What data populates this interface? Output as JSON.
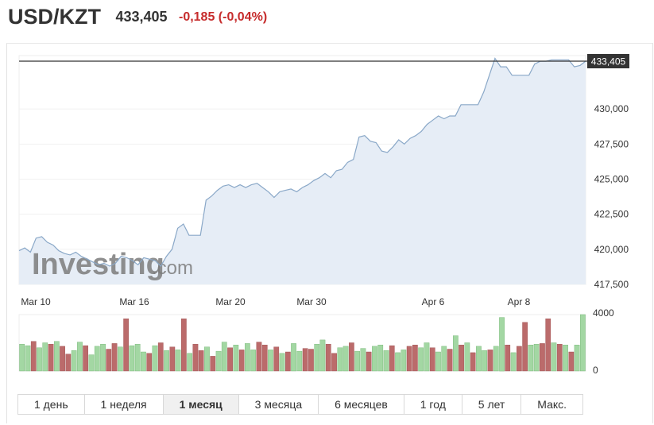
{
  "header": {
    "symbol": "USD/KZT",
    "last_price": "433,405",
    "change": "-0,185 (-0,04%)",
    "change_color": "#c62c2c"
  },
  "watermark": {
    "text": "Investing",
    "suffix": ".com"
  },
  "price_badge": "433,405",
  "tabs": [
    {
      "label": "1 день",
      "active": false
    },
    {
      "label": "1 неделя",
      "active": false
    },
    {
      "label": "1 месяц",
      "active": true
    },
    {
      "label": "3 месяца",
      "active": false
    },
    {
      "label": "6 месяцев",
      "active": false
    },
    {
      "label": "1 год",
      "active": false
    },
    {
      "label": "5 лет",
      "active": false
    },
    {
      "label": "Макс.",
      "active": false
    }
  ],
  "colors": {
    "line": "#8aa8c8",
    "area": "#e6edf6",
    "up_bar": "#a3d7a3",
    "down_bar": "#bb6b6b",
    "last_price_line": "#333333"
  },
  "chart_data": {
    "type": "area",
    "x_tick_labels": [
      "Mar 10",
      "Mar 16",
      "Mar 20",
      "Mar 30",
      "Apr 6",
      "Apr 8"
    ],
    "y_tick_labels": [
      "417,500",
      "420,000",
      "422,500",
      "425,000",
      "427,500",
      "430,000"
    ],
    "y_ticks": [
      417.5,
      420,
      422.5,
      425,
      427.5,
      430
    ],
    "ylim": [
      417.5,
      433.8
    ],
    "last_value": 433.405,
    "series": [
      {
        "type": "area",
        "values": [
          419.9,
          420.1,
          419.8,
          420.8,
          420.9,
          420.5,
          420.3,
          419.9,
          419.7,
          419.6,
          419.8,
          419.5,
          419.3,
          419.1,
          418.9,
          419.0,
          418.8,
          419.0,
          419.5,
          419.4,
          419.2,
          418.9,
          419.4,
          419.3,
          419.2,
          418.8,
          419.5,
          420.0,
          421.5,
          421.8,
          421.0,
          421.0,
          421.0,
          423.5,
          423.8,
          424.2,
          424.5,
          424.6,
          424.4,
          424.6,
          424.4,
          424.6,
          424.7,
          424.4,
          424.1,
          423.7,
          424.1,
          424.2,
          424.3,
          424.1,
          424.4,
          424.6,
          424.9,
          425.1,
          425.4,
          425.1,
          425.6,
          425.7,
          426.2,
          426.4,
          428.0,
          428.1,
          427.7,
          427.6,
          427.0,
          426.9,
          427.3,
          427.8,
          427.5,
          427.9,
          428.1,
          428.4,
          428.9,
          429.2,
          429.5,
          429.3,
          429.5,
          429.5,
          430.3,
          430.3,
          430.3,
          430.3,
          431.2,
          432.4,
          433.6,
          433.0,
          433.0,
          432.4,
          432.4,
          432.4,
          432.4,
          433.2,
          433.4,
          433.4,
          433.5,
          433.5,
          433.5,
          433.5,
          433.0,
          433.1,
          433.405
        ]
      },
      {
        "type": "bar",
        "name_note": "volume",
        "axis_labels": [
          "4000",
          "0"
        ],
        "ylim": [
          0,
          4000
        ],
        "values": [
          1900,
          1800,
          2100,
          1650,
          2000,
          1900,
          2100,
          1750,
          1200,
          1450,
          2050,
          1800,
          1150,
          1750,
          1900,
          1550,
          1950,
          1700,
          3700,
          1800,
          1900,
          1350,
          1250,
          1800,
          2000,
          1450,
          1700,
          1500,
          3700,
          1250,
          1900,
          1450,
          1700,
          1050,
          1400,
          2050,
          1650,
          1850,
          1500,
          1950,
          1500,
          2050,
          1850,
          1500,
          1700,
          1250,
          1350,
          1950,
          1400,
          1600,
          1550,
          1900,
          2200,
          1900,
          1250,
          1650,
          1750,
          2000,
          1400,
          1600,
          1350,
          1750,
          1850,
          1450,
          1800,
          1300,
          1500,
          1750,
          1850,
          1650,
          2000,
          1650,
          1350,
          1750,
          1550,
          2500,
          1850,
          2000,
          1300,
          1750,
          1450,
          1500,
          1750,
          3800,
          1850,
          1300,
          1750,
          3450,
          1850,
          1900,
          1950,
          3700,
          2000,
          1900,
          1850,
          1350,
          1850,
          4000
        ],
        "colors": [
          "u",
          "u",
          "d",
          "u",
          "u",
          "d",
          "u",
          "d",
          "d",
          "u",
          "u",
          "d",
          "u",
          "u",
          "u",
          "d",
          "d",
          "u",
          "d",
          "u",
          "u",
          "u",
          "d",
          "u",
          "d",
          "u",
          "d",
          "u",
          "d",
          "u",
          "d",
          "d",
          "u",
          "d",
          "u",
          "u",
          "d",
          "u",
          "d",
          "u",
          "u",
          "d",
          "d",
          "u",
          "d",
          "u",
          "d",
          "u",
          "u",
          "d",
          "d",
          "u",
          "u",
          "d",
          "d",
          "u",
          "u",
          "d",
          "u",
          "u",
          "d",
          "u",
          "u",
          "u",
          "d",
          "u",
          "u",
          "d",
          "d",
          "u",
          "u",
          "d",
          "u",
          "u",
          "d",
          "u",
          "d",
          "u",
          "d",
          "u",
          "u",
          "d",
          "u",
          "u",
          "d",
          "u",
          "d",
          "d",
          "u",
          "u",
          "d",
          "d",
          "u",
          "d",
          "u",
          "d",
          "u",
          "u"
        ]
      }
    ]
  }
}
